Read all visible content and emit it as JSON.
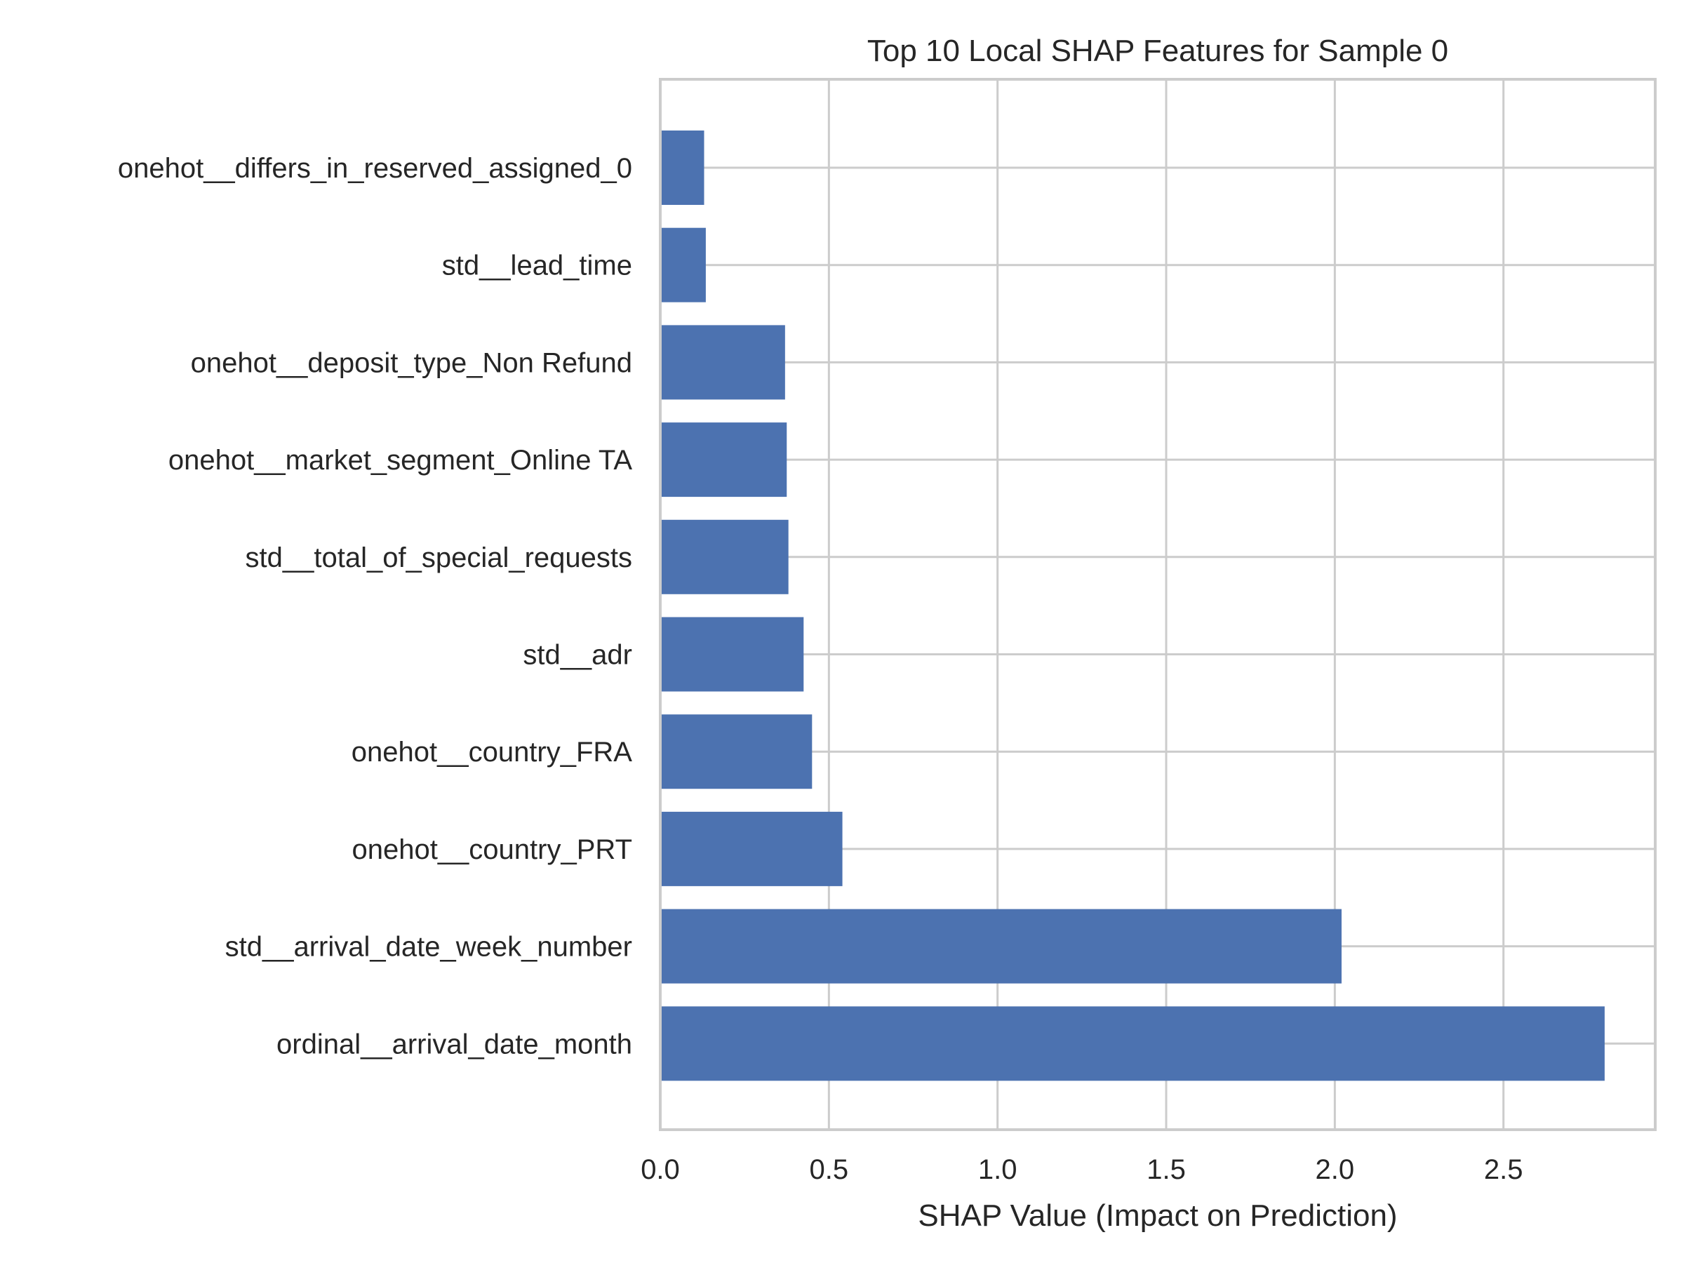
{
  "chart_data": {
    "type": "bar",
    "orientation": "horizontal",
    "title": "Top 10 Local SHAP Features for Sample 0",
    "xlabel": "SHAP Value (Impact on Prediction)",
    "ylabel": "",
    "xlim": [
      0,
      2.95
    ],
    "xticks": [
      0.0,
      0.5,
      1.0,
      1.5,
      2.0,
      2.5
    ],
    "xtick_labels": [
      "0.0",
      "0.5",
      "1.0",
      "1.5",
      "2.0",
      "2.5"
    ],
    "categories": [
      "onehot__differs_in_reserved_assigned_0",
      "std__lead_time",
      "onehot__deposit_type_Non Refund",
      "onehot__market_segment_Online TA",
      "std__total_of_special_requests",
      "std__adr",
      "onehot__country_FRA",
      "onehot__country_PRT",
      "std__arrival_date_week_number",
      "ordinal__arrival_date_month"
    ],
    "values": [
      0.13,
      0.135,
      0.37,
      0.375,
      0.38,
      0.425,
      0.45,
      0.54,
      2.02,
      2.8
    ],
    "grid": true,
    "bar_color": "#4c72b0",
    "grid_color": "#cccccc",
    "text_color": "#262626"
  }
}
